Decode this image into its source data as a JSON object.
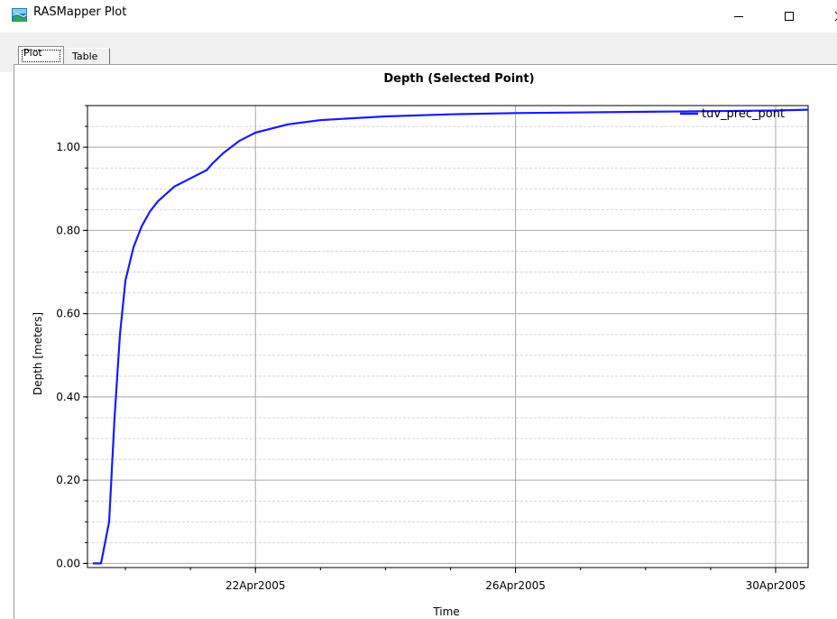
{
  "window": {
    "title": "RASMapper Plot",
    "controls": {
      "minimize": "minimize",
      "maximize": "maximize",
      "close": "close"
    }
  },
  "tabs": [
    {
      "label": "Plot",
      "selected": true
    },
    {
      "label": "Table",
      "selected": false
    }
  ],
  "chart_data": {
    "type": "line",
    "title": "Depth (Selected Point)",
    "xlabel": "Time",
    "ylabel": "Depth [meters]",
    "x_ticks": [
      "22Apr2005",
      "26Apr2005",
      "30Apr2005"
    ],
    "x_tick_values": [
      "2005-04-22",
      "2005-04-26",
      "2005-04-30"
    ],
    "xlim": [
      "2005-04-19 10:00",
      "2005-04-30 12:00"
    ],
    "y_ticks": [
      "0.00",
      "0.20",
      "0.40",
      "0.60",
      "0.80",
      "1.00"
    ],
    "ylim": [
      -0.01,
      1.1
    ],
    "grid": true,
    "legend_position": "top-right",
    "series": [
      {
        "name": "tuv_prec_pont",
        "color": "#1a1aff",
        "points": [
          [
            "2005-04-19 12:00",
            0.0
          ],
          [
            "2005-04-19 15:00",
            0.0
          ],
          [
            "2005-04-19 18:00",
            0.1
          ],
          [
            "2005-04-19 20:00",
            0.35
          ],
          [
            "2005-04-19 22:00",
            0.55
          ],
          [
            "2005-04-20 00:00",
            0.68
          ],
          [
            "2005-04-20 03:00",
            0.76
          ],
          [
            "2005-04-20 06:00",
            0.81
          ],
          [
            "2005-04-20 09:00",
            0.845
          ],
          [
            "2005-04-20 12:00",
            0.87
          ],
          [
            "2005-04-20 18:00",
            0.905
          ],
          [
            "2005-04-21 00:00",
            0.925
          ],
          [
            "2005-04-21 06:00",
            0.945
          ],
          [
            "2005-04-21 08:00",
            0.96
          ],
          [
            "2005-04-21 12:00",
            0.985
          ],
          [
            "2005-04-21 18:00",
            1.015
          ],
          [
            "2005-04-22 00:00",
            1.035
          ],
          [
            "2005-04-22 12:00",
            1.055
          ],
          [
            "2005-04-23 00:00",
            1.065
          ],
          [
            "2005-04-24 00:00",
            1.074
          ],
          [
            "2005-04-25 00:00",
            1.079
          ],
          [
            "2005-04-26 00:00",
            1.082
          ],
          [
            "2005-04-28 00:00",
            1.085
          ],
          [
            "2005-04-30 00:00",
            1.088
          ],
          [
            "2005-04-30 12:00",
            1.09
          ]
        ]
      }
    ]
  }
}
